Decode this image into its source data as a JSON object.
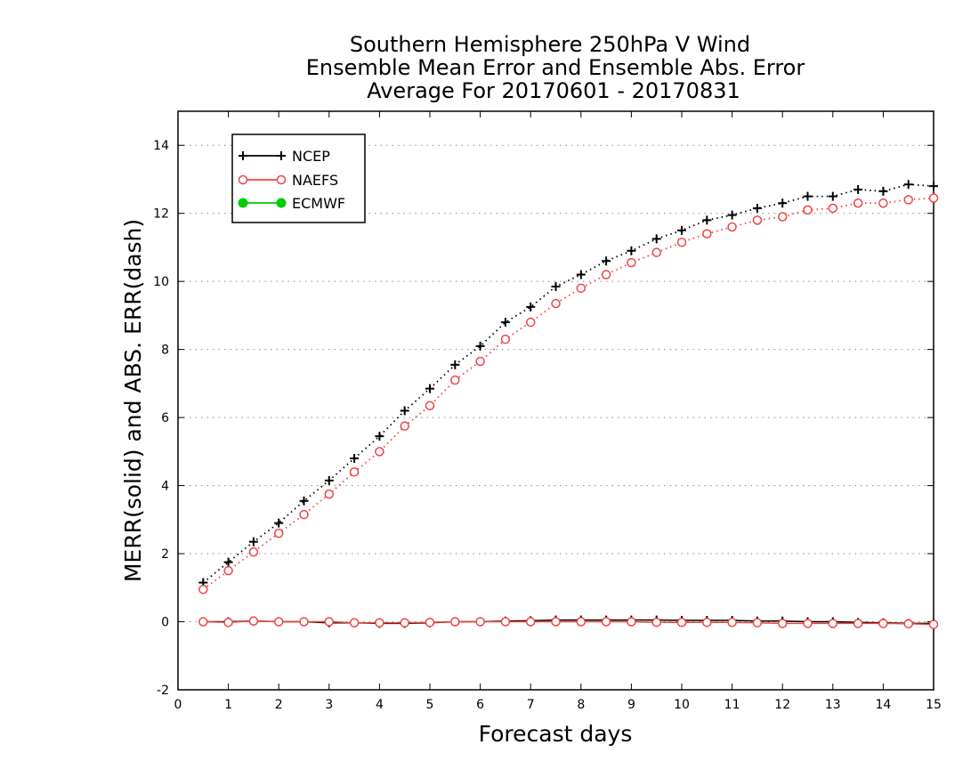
{
  "chart_data": {
    "type": "line",
    "title_lines": [
      "Southern Hemisphere 250hPa V Wind",
      "Ensemble Mean Error and Ensemble Abs. Error",
      "Average For 20170601 - 20170831"
    ],
    "xlabel": "Forecast days",
    "ylabel": "MERR(solid) and ABS. ERR(dash)",
    "xlim": [
      0,
      15
    ],
    "ylim": [
      -2,
      15
    ],
    "x_ticks": [
      0,
      1,
      2,
      3,
      4,
      5,
      6,
      7,
      8,
      9,
      10,
      11,
      12,
      13,
      14,
      15
    ],
    "y_ticks": [
      -2,
      0,
      2,
      4,
      6,
      8,
      10,
      12,
      14
    ],
    "grid": "horizontal dotted",
    "legend_position": "top-left",
    "x": [
      0.5,
      1,
      1.5,
      2,
      2.5,
      3,
      3.5,
      4,
      4.5,
      5,
      5.5,
      6,
      6.5,
      7,
      7.5,
      8,
      8.5,
      9,
      9.5,
      10,
      10.5,
      11,
      11.5,
      12,
      12.5,
      13,
      13.5,
      14,
      14.5,
      15
    ],
    "series": [
      {
        "name": "NCEP",
        "color": "#000000",
        "marker": "plus",
        "abs_err": [
          1.15,
          1.75,
          2.35,
          2.9,
          3.55,
          4.15,
          4.8,
          5.45,
          6.2,
          6.85,
          7.55,
          8.1,
          8.8,
          9.25,
          9.85,
          10.2,
          10.6,
          10.9,
          11.25,
          11.5,
          11.8,
          11.95,
          12.15,
          12.3,
          12.5,
          12.5,
          12.7,
          12.65,
          12.85,
          12.8
        ],
        "mean_err": [
          0.0,
          0.0,
          0.02,
          0.0,
          0.0,
          -0.03,
          -0.03,
          -0.05,
          -0.05,
          -0.03,
          0.0,
          0.0,
          0.02,
          0.03,
          0.05,
          0.05,
          0.05,
          0.05,
          0.05,
          0.04,
          0.04,
          0.04,
          0.02,
          0.02,
          0.0,
          0.0,
          -0.02,
          -0.03,
          -0.05,
          -0.05
        ]
      },
      {
        "name": "NAEFS",
        "color": "#ee4444",
        "marker": "open-circle",
        "abs_err": [
          0.95,
          1.5,
          2.05,
          2.6,
          3.15,
          3.75,
          4.4,
          5.0,
          5.75,
          6.35,
          7.1,
          7.65,
          8.3,
          8.8,
          9.35,
          9.8,
          10.2,
          10.55,
          10.85,
          11.15,
          11.4,
          11.6,
          11.8,
          11.9,
          12.1,
          12.15,
          12.3,
          12.3,
          12.4,
          12.45
        ]
      },
      {
        "name": "ECMWF",
        "color": "#00cc00",
        "marker": "filled-circle"
      }
    ],
    "naefs_mean_err": [
      0.0,
      -0.02,
      0.02,
      0.0,
      0.0,
      0.0,
      -0.03,
      -0.03,
      -0.03,
      -0.02,
      0.0,
      0.0,
      0.0,
      0.0,
      0.0,
      0.0,
      0.0,
      0.0,
      -0.02,
      -0.02,
      -0.02,
      -0.02,
      -0.03,
      -0.05,
      -0.05,
      -0.05,
      -0.05,
      -0.05,
      -0.06,
      -0.08
    ]
  }
}
